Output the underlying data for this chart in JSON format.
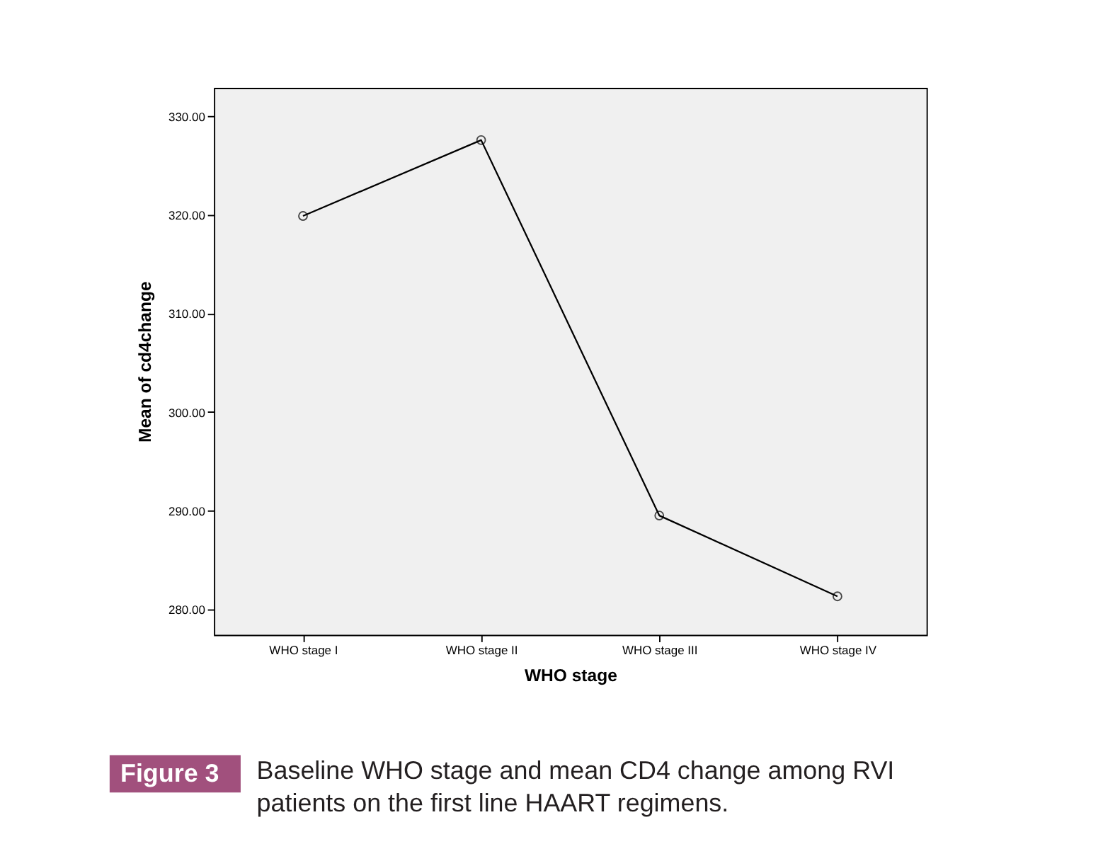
{
  "chart_data": {
    "type": "line",
    "xlabel": "WHO stage",
    "ylabel": "Mean of cd4change",
    "categories": [
      "WHO stage I",
      "WHO stage II",
      "WHO stage III",
      "WHO stage IV"
    ],
    "series": [
      {
        "color": "#000000",
        "values": [
          319.9,
          327.6,
          289.5,
          281.3
        ]
      }
    ],
    "ylim": [
      277.4,
      332.9
    ],
    "yticks": [
      {
        "value": 280,
        "label": "280.00"
      },
      {
        "value": 290,
        "label": "290.00"
      },
      {
        "value": 300,
        "label": "300.00"
      },
      {
        "value": 310,
        "label": "310.00"
      },
      {
        "value": 320,
        "label": "320.00"
      },
      {
        "value": 330,
        "label": "330.00"
      }
    ],
    "grid": false,
    "marker": "circle",
    "line_style": "solid",
    "annotations": [
      "Figure 3",
      "Baseline WHO stage and mean CD4 change among RVI patients on the first line HAART regimens."
    ]
  }
}
